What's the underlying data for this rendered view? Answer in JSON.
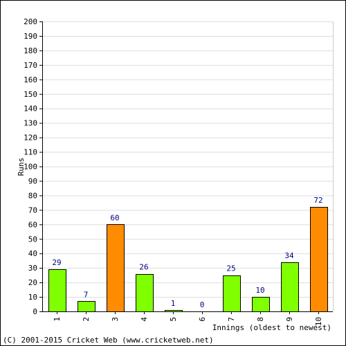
{
  "chart_data": {
    "type": "bar",
    "categories": [
      "1",
      "2",
      "3",
      "4",
      "5",
      "6",
      "7",
      "8",
      "9",
      "10"
    ],
    "values": [
      29,
      7,
      60,
      26,
      1,
      0,
      25,
      10,
      34,
      72
    ],
    "highlight": [
      false,
      false,
      true,
      false,
      false,
      false,
      false,
      false,
      false,
      true
    ],
    "xlabel": "Innings (oldest to newest)",
    "ylabel": "Runs",
    "ylim": [
      0,
      200
    ],
    "ytick_step": 10,
    "grid": "horizontal",
    "colors": {
      "bar_normal": "#80ff00",
      "bar_highlight": "#ff8c00",
      "bar_outline": "#000000",
      "data_label": "#000080",
      "grid": "#dddddd",
      "border": "#000000"
    }
  },
  "footer": "(C) 2001-2015 Cricket Web (www.cricketweb.net)"
}
